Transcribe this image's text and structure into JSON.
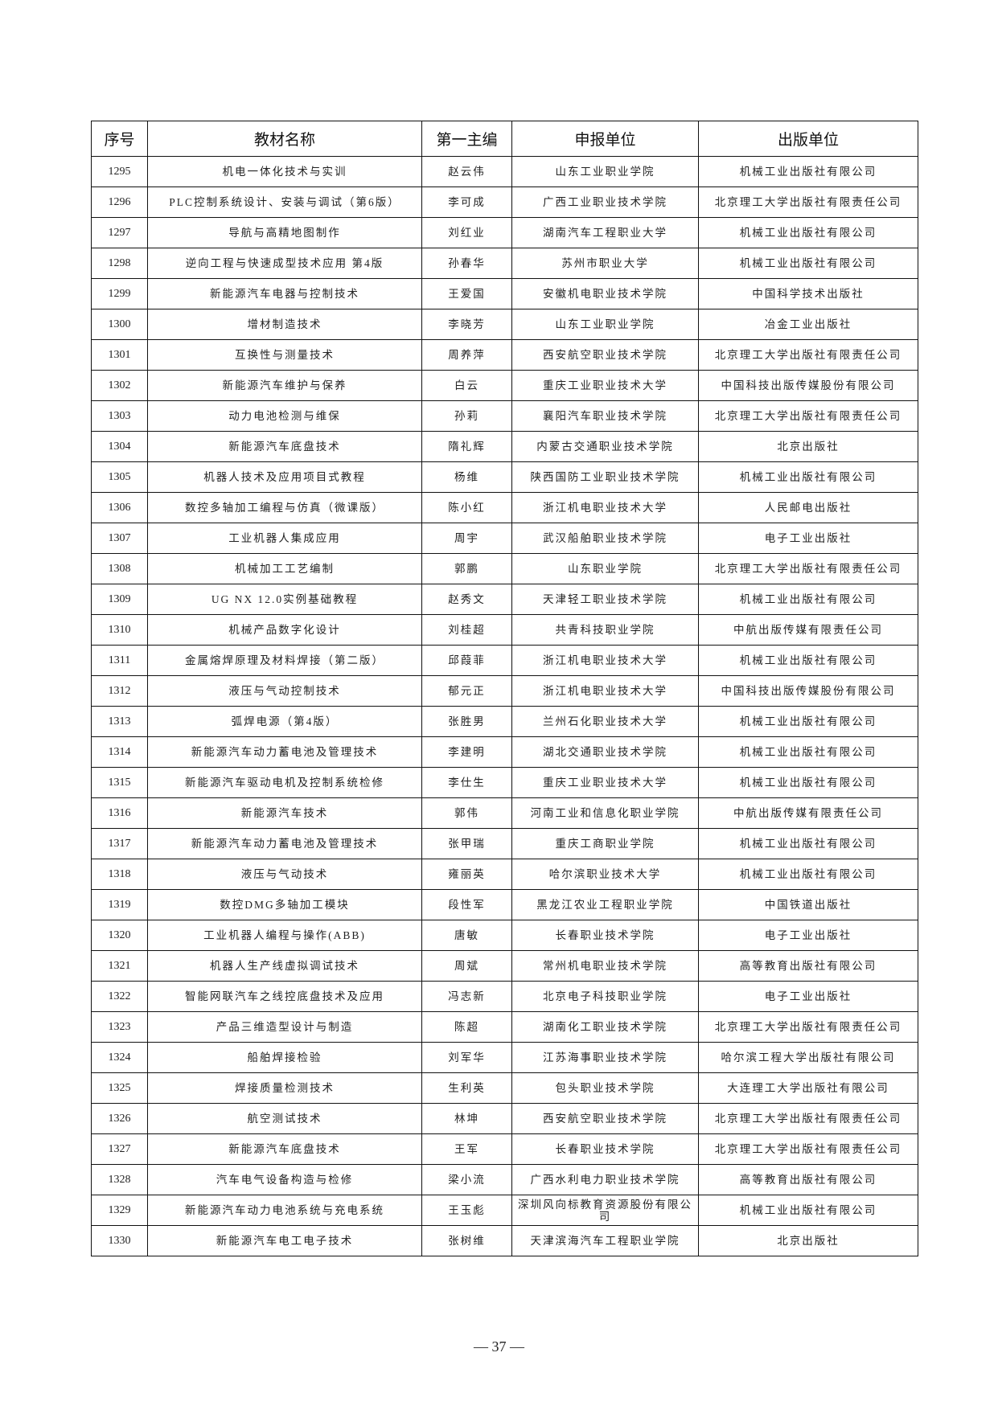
{
  "headers": [
    "序号",
    "教材名称",
    "第一主编",
    "申报单位",
    "出版单位"
  ],
  "rows": [
    [
      "1295",
      "机电一体化技术与实训",
      "赵云伟",
      "山东工业职业学院",
      "机械工业出版社有限公司"
    ],
    [
      "1296",
      "PLC控制系统设计、安装与调试（第6版）",
      "李可成",
      "广西工业职业技术学院",
      "北京理工大学出版社有限责任公司"
    ],
    [
      "1297",
      "导航与高精地图制作",
      "刘红业",
      "湖南汽车工程职业大学",
      "机械工业出版社有限公司"
    ],
    [
      "1298",
      "逆向工程与快速成型技术应用 第4版",
      "孙春华",
      "苏州市职业大学",
      "机械工业出版社有限公司"
    ],
    [
      "1299",
      "新能源汽车电器与控制技术",
      "王爱国",
      "安徽机电职业技术学院",
      "中国科学技术出版社"
    ],
    [
      "1300",
      "增材制造技术",
      "李晓芳",
      "山东工业职业学院",
      "冶金工业出版社"
    ],
    [
      "1301",
      "互换性与测量技术",
      "周养萍",
      "西安航空职业技术学院",
      "北京理工大学出版社有限责任公司"
    ],
    [
      "1302",
      "新能源汽车维护与保养",
      "白云",
      "重庆工业职业技术大学",
      "中国科技出版传媒股份有限公司"
    ],
    [
      "1303",
      "动力电池检测与维保",
      "孙莉",
      "襄阳汽车职业技术学院",
      "北京理工大学出版社有限责任公司"
    ],
    [
      "1304",
      "新能源汽车底盘技术",
      "隋礼辉",
      "内蒙古交通职业技术学院",
      "北京出版社"
    ],
    [
      "1305",
      "机器人技术及应用项目式教程",
      "杨维",
      "陕西国防工业职业技术学院",
      "机械工业出版社有限公司"
    ],
    [
      "1306",
      "数控多轴加工编程与仿真（微课版）",
      "陈小红",
      "浙江机电职业技术大学",
      "人民邮电出版社"
    ],
    [
      "1307",
      "工业机器人集成应用",
      "周宇",
      "武汉船舶职业技术学院",
      "电子工业出版社"
    ],
    [
      "1308",
      "机械加工工艺编制",
      "郭鹏",
      "山东职业学院",
      "北京理工大学出版社有限责任公司"
    ],
    [
      "1309",
      "UG NX 12.0实例基础教程",
      "赵秀文",
      "天津轻工职业技术学院",
      "机械工业出版社有限公司"
    ],
    [
      "1310",
      "机械产品数字化设计",
      "刘桂超",
      "共青科技职业学院",
      "中航出版传媒有限责任公司"
    ],
    [
      "1311",
      "金属熔焊原理及材料焊接（第二版）",
      "邱葭菲",
      "浙江机电职业技术大学",
      "机械工业出版社有限公司"
    ],
    [
      "1312",
      "液压与气动控制技术",
      "郁元正",
      "浙江机电职业技术大学",
      "中国科技出版传媒股份有限公司"
    ],
    [
      "1313",
      "弧焊电源（第4版）",
      "张胜男",
      "兰州石化职业技术大学",
      "机械工业出版社有限公司"
    ],
    [
      "1314",
      "新能源汽车动力蓄电池及管理技术",
      "李建明",
      "湖北交通职业技术学院",
      "机械工业出版社有限公司"
    ],
    [
      "1315",
      "新能源汽车驱动电机及控制系统检修",
      "李仕生",
      "重庆工业职业技术大学",
      "机械工业出版社有限公司"
    ],
    [
      "1316",
      "新能源汽车技术",
      "郭伟",
      "河南工业和信息化职业学院",
      "中航出版传媒有限责任公司"
    ],
    [
      "1317",
      "新能源汽车动力蓄电池及管理技术",
      "张甲瑞",
      "重庆工商职业学院",
      "机械工业出版社有限公司"
    ],
    [
      "1318",
      "液压与气动技术",
      "雍丽英",
      "哈尔滨职业技术大学",
      "机械工业出版社有限公司"
    ],
    [
      "1319",
      "数控DMG多轴加工模块",
      "段性军",
      "黑龙江农业工程职业学院",
      "中国铁道出版社"
    ],
    [
      "1320",
      "工业机器人编程与操作(ABB)",
      "唐敏",
      "长春职业技术学院",
      "电子工业出版社"
    ],
    [
      "1321",
      "机器人生产线虚拟调试技术",
      "周斌",
      "常州机电职业技术学院",
      "高等教育出版社有限公司"
    ],
    [
      "1322",
      "智能网联汽车之线控底盘技术及应用",
      "冯志新",
      "北京电子科技职业学院",
      "电子工业出版社"
    ],
    [
      "1323",
      "产品三维造型设计与制造",
      "陈超",
      "湖南化工职业技术学院",
      "北京理工大学出版社有限责任公司"
    ],
    [
      "1324",
      "船舶焊接检验",
      "刘军华",
      "江苏海事职业技术学院",
      "哈尔滨工程大学出版社有限公司"
    ],
    [
      "1325",
      "焊接质量检测技术",
      "生利英",
      "包头职业技术学院",
      "大连理工大学出版社有限公司"
    ],
    [
      "1326",
      "航空测试技术",
      "林坤",
      "西安航空职业技术学院",
      "北京理工大学出版社有限责任公司"
    ],
    [
      "1327",
      "新能源汽车底盘技术",
      "王军",
      "长春职业技术学院",
      "北京理工大学出版社有限责任公司"
    ],
    [
      "1328",
      "汽车电气设备构造与检修",
      "梁小流",
      "广西水利电力职业技术学院",
      "高等教育出版社有限公司"
    ],
    [
      "1329",
      "新能源汽车动力电池系统与充电系统",
      "王玉彪",
      "深圳风向标教育资源股份有限公司",
      "机械工业出版社有限公司"
    ],
    [
      "1330",
      "新能源汽车电工电子技术",
      "张树维",
      "天津滨海汽车工程职业学院",
      "北京出版社"
    ]
  ],
  "page_number": "— 37 —"
}
